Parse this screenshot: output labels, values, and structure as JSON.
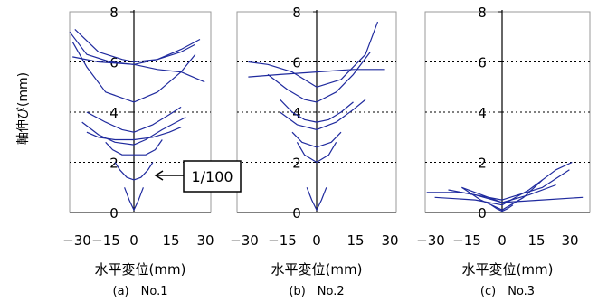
{
  "ylabel": "軸伸び(mm)",
  "annotation": "1/100",
  "colors": {
    "curve": "#1f2a9e",
    "frame": "#9a9a9a",
    "axis": "#000000"
  },
  "chart_data": [
    {
      "type": "line",
      "caption": "(a)　No.1",
      "xlabel": "水平変位(mm)",
      "xlim": [
        -30,
        30
      ],
      "ylim": [
        0,
        8
      ],
      "x_ticks": [
        "−30",
        "−15",
        "0",
        "15",
        "30"
      ],
      "y_ticks": [
        "0",
        "2",
        "4",
        "6",
        "8"
      ],
      "grid": "dotted horizontal at 2, 4, 6",
      "series": [
        {
          "x": [
            -4,
            -2,
            0,
            2,
            4
          ],
          "y": [
            1.0,
            0.5,
            0.1,
            0.5,
            1.0
          ]
        },
        {
          "x": [
            -8,
            -6,
            -3,
            0,
            3,
            6,
            8
          ],
          "y": [
            2.0,
            1.7,
            1.4,
            1.3,
            1.4,
            1.7,
            2.0
          ]
        },
        {
          "x": [
            -12,
            -9,
            -5,
            0,
            5,
            9,
            12
          ],
          "y": [
            2.8,
            2.5,
            2.3,
            2.3,
            2.3,
            2.5,
            2.9
          ]
        },
        {
          "x": [
            -20,
            -15,
            -8,
            0,
            8,
            15,
            20
          ],
          "y": [
            3.2,
            3.0,
            2.9,
            2.9,
            3.0,
            3.2,
            3.4
          ]
        },
        {
          "x": [
            -20,
            -12,
            -5,
            0,
            8,
            15,
            20
          ],
          "y": [
            4.0,
            3.6,
            3.3,
            3.2,
            3.5,
            3.9,
            4.2
          ]
        },
        {
          "x": [
            -22,
            -15,
            -8,
            0,
            5,
            12,
            22
          ],
          "y": [
            3.6,
            3.1,
            2.8,
            2.7,
            2.9,
            3.3,
            3.8
          ]
        },
        {
          "x": [
            -26,
            -20,
            -12,
            0,
            10,
            20,
            26
          ],
          "y": [
            6.8,
            5.8,
            4.8,
            4.4,
            4.8,
            5.6,
            6.3
          ]
        },
        {
          "x": [
            -28,
            -20,
            -10,
            0,
            10,
            20,
            28
          ],
          "y": [
            7.2,
            6.3,
            6.0,
            5.9,
            6.1,
            6.5,
            6.9
          ]
        },
        {
          "x": [
            -26,
            -15,
            0,
            10,
            20,
            30
          ],
          "y": [
            6.2,
            6.0,
            5.9,
            5.7,
            5.6,
            5.2
          ]
        },
        {
          "x": [
            -25,
            -15,
            -5,
            0,
            10,
            20,
            26
          ],
          "y": [
            7.3,
            6.4,
            6.1,
            6.0,
            6.1,
            6.4,
            6.7
          ]
        }
      ]
    },
    {
      "type": "line",
      "caption": "(b)　No.2",
      "xlabel": "水平変位(mm)",
      "xlim": [
        -30,
        30
      ],
      "ylim": [
        0,
        8
      ],
      "x_ticks": [
        "−30",
        "−15",
        "0",
        "15",
        "30"
      ],
      "y_ticks": [
        "0",
        "2",
        "4",
        "6",
        "8"
      ],
      "grid": "dotted horizontal at 2, 4, 6",
      "series": [
        {
          "x": [
            -4,
            -2,
            0,
            2,
            4
          ],
          "y": [
            1.0,
            0.5,
            0.1,
            0.5,
            1.0
          ]
        },
        {
          "x": [
            -8,
            -5,
            0,
            5,
            8
          ],
          "y": [
            2.8,
            2.3,
            2.0,
            2.3,
            2.8
          ]
        },
        {
          "x": [
            -10,
            -6,
            0,
            6,
            10
          ],
          "y": [
            3.2,
            2.8,
            2.6,
            2.8,
            3.2
          ]
        },
        {
          "x": [
            -15,
            -10,
            -5,
            0,
            5,
            10,
            15
          ],
          "y": [
            4.5,
            4.0,
            3.7,
            3.6,
            3.7,
            4.0,
            4.4
          ]
        },
        {
          "x": [
            -15,
            -8,
            0,
            8,
            15,
            20
          ],
          "y": [
            4.0,
            3.5,
            3.3,
            3.6,
            4.1,
            4.5
          ]
        },
        {
          "x": [
            -20,
            -12,
            -5,
            0,
            8,
            15,
            22
          ],
          "y": [
            5.5,
            4.9,
            4.5,
            4.4,
            4.8,
            5.5,
            6.4
          ]
        },
        {
          "x": [
            -28,
            -20,
            -10,
            0,
            10,
            20,
            25
          ],
          "y": [
            6.0,
            5.9,
            5.6,
            5.0,
            5.3,
            6.3,
            7.6
          ]
        },
        {
          "x": [
            -28,
            -15,
            0,
            15,
            28
          ],
          "y": [
            5.4,
            5.5,
            5.6,
            5.7,
            5.7
          ]
        }
      ]
    },
    {
      "type": "line",
      "caption": "(c)　No.3",
      "xlabel": "水平変位(mm)",
      "xlim": [
        -30,
        30
      ],
      "ylim": [
        0,
        8
      ],
      "x_ticks": [
        "−30",
        "−15",
        "0",
        "15",
        "30"
      ],
      "y_ticks": [
        "0",
        "2",
        "4",
        "6",
        "8"
      ],
      "grid": "dotted horizontal at 2, 4, 6",
      "series": [
        {
          "x": [
            -4,
            -2,
            0,
            2,
            4
          ],
          "y": [
            0.3,
            0.15,
            0.05,
            0.15,
            0.3
          ]
        },
        {
          "x": [
            -15,
            -8,
            0,
            8,
            15
          ],
          "y": [
            1.0,
            0.5,
            0.1,
            0.6,
            1.3
          ]
        },
        {
          "x": [
            -20,
            -10,
            0,
            10,
            20
          ],
          "y": [
            0.9,
            0.7,
            0.4,
            0.7,
            1.1
          ]
        },
        {
          "x": [
            -28,
            -15,
            0,
            15,
            25
          ],
          "y": [
            0.8,
            0.8,
            0.5,
            1.0,
            1.7
          ]
        },
        {
          "x": [
            -25,
            -10,
            0,
            10,
            20,
            26
          ],
          "y": [
            0.6,
            0.5,
            0.3,
            0.9,
            1.7,
            2.0
          ]
        },
        {
          "x": [
            -15,
            0,
            15,
            30
          ],
          "y": [
            1.0,
            0.4,
            0.5,
            0.6
          ]
        }
      ]
    }
  ]
}
